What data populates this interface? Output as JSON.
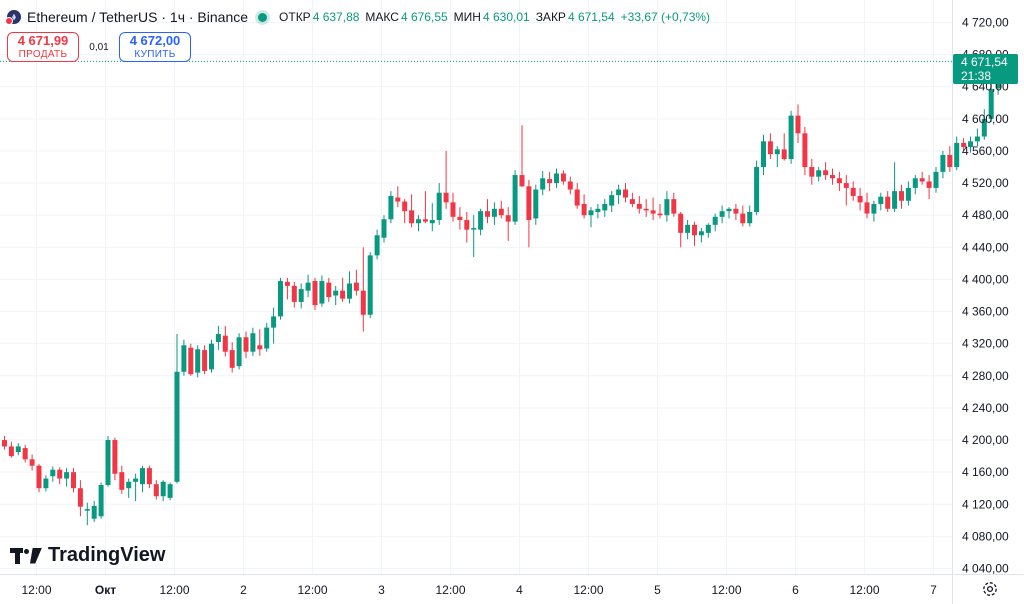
{
  "header": {
    "title": "Ethereum / TetherUS · 1ч · Binance",
    "ohlc": [
      {
        "label": "ОТКР",
        "value": "4 637,88"
      },
      {
        "label": "МАКС",
        "value": "4 676,55"
      },
      {
        "label": "МИН",
        "value": "4 630,01"
      },
      {
        "label": "ЗАКР",
        "value": "4 671,54"
      }
    ],
    "change": "+33,67 (+0,73%)"
  },
  "trade": {
    "sell_price": "4 671,99",
    "sell_label": "ПРОДАТЬ",
    "spread": "0,01",
    "buy_price": "4 672,00",
    "buy_label": "КУПИТЬ"
  },
  "price_tag": {
    "price": "4 671,54",
    "countdown": "21:38"
  },
  "logo": "TradingView",
  "colors": {
    "up": "#089981",
    "down": "#f23645",
    "grid": "#f0f3fa",
    "text": "#131722"
  },
  "chart_data": {
    "type": "candlestick",
    "title": "Ethereum / TetherUS · 1ч · Binance",
    "y_ticks": [
      "4 720,00",
      "4 680,00",
      "4 640,00",
      "4 600,00",
      "4 560,00",
      "4 520,00",
      "4 480,00",
      "4 440,00",
      "4 400,00",
      "4 360,00",
      "4 320,00",
      "4 280,00",
      "4 240,00",
      "4 200,00",
      "4 160,00",
      "4 120,00",
      "4 080,00",
      "4 040,00"
    ],
    "y_tick_values": [
      4720,
      4680,
      4640,
      4600,
      4560,
      4520,
      4480,
      4440,
      4400,
      4360,
      4320,
      4280,
      4240,
      4200,
      4160,
      4120,
      4080,
      4040
    ],
    "ylim": [
      4032,
      4740
    ],
    "x_ticks": [
      {
        "label": "12:00",
        "bar": 5,
        "bold": false
      },
      {
        "label": "Окт",
        "bar": 15,
        "bold": true
      },
      {
        "label": "12:00",
        "bar": 25,
        "bold": false
      },
      {
        "label": "2",
        "bar": 35,
        "bold": false
      },
      {
        "label": "12:00",
        "bar": 45,
        "bold": false
      },
      {
        "label": "3",
        "bar": 55,
        "bold": false
      },
      {
        "label": "12:00",
        "bar": 65,
        "bold": false
      },
      {
        "label": "4",
        "bar": 75,
        "bold": false
      },
      {
        "label": "12:00",
        "bar": 85,
        "bold": false
      },
      {
        "label": "5",
        "bar": 95,
        "bold": false
      },
      {
        "label": "12:00",
        "bar": 105,
        "bold": false
      },
      {
        "label": "6",
        "bar": 115,
        "bold": false
      },
      {
        "label": "12:00",
        "bar": 125,
        "bold": false
      },
      {
        "label": "7",
        "bar": 135,
        "bold": false
      }
    ],
    "last_price": 4671.54,
    "candles": [
      [
        4200,
        4205,
        4188,
        4192
      ],
      [
        4192,
        4198,
        4178,
        4180
      ],
      [
        4185,
        4196,
        4181,
        4192
      ],
      [
        4190,
        4194,
        4172,
        4176
      ],
      [
        4176,
        4182,
        4162,
        4168
      ],
      [
        4168,
        4170,
        4135,
        4140
      ],
      [
        4140,
        4156,
        4136,
        4152
      ],
      [
        4155,
        4167,
        4148,
        4163
      ],
      [
        4163,
        4166,
        4145,
        4152
      ],
      [
        4152,
        4165,
        4142,
        4160
      ],
      [
        4160,
        4165,
        4135,
        4140
      ],
      [
        4140,
        4150,
        4105,
        4117
      ],
      [
        4112,
        4122,
        4094,
        4114
      ],
      [
        4102,
        4124,
        4098,
        4118
      ],
      [
        4105,
        4147,
        4102,
        4144
      ],
      [
        4144,
        4205,
        4142,
        4200
      ],
      [
        4200,
        4203,
        4150,
        4158
      ],
      [
        4160,
        4168,
        4133,
        4138
      ],
      [
        4140,
        4152,
        4128,
        4148
      ],
      [
        4148,
        4158,
        4124,
        4152
      ],
      [
        4145,
        4168,
        4135,
        4165
      ],
      [
        4165,
        4168,
        4140,
        4145
      ],
      [
        4145,
        4150,
        4126,
        4130
      ],
      [
        4130,
        4150,
        4124,
        4148
      ],
      [
        4128,
        4147,
        4125,
        4145
      ],
      [
        4148,
        4332,
        4146,
        4285
      ],
      [
        4285,
        4325,
        4280,
        4318
      ],
      [
        4315,
        4320,
        4280,
        4282
      ],
      [
        4284,
        4318,
        4278,
        4313
      ],
      [
        4312,
        4318,
        4282,
        4286
      ],
      [
        4288,
        4325,
        4284,
        4320
      ],
      [
        4322,
        4342,
        4312,
        4332
      ],
      [
        4330,
        4342,
        4304,
        4310
      ],
      [
        4312,
        4322,
        4284,
        4290
      ],
      [
        4292,
        4333,
        4288,
        4328
      ],
      [
        4328,
        4335,
        4302,
        4310
      ],
      [
        4310,
        4340,
        4305,
        4333
      ],
      [
        4318,
        4338,
        4305,
        4313
      ],
      [
        4314,
        4346,
        4310,
        4340
      ],
      [
        4340,
        4365,
        4320,
        4354
      ],
      [
        4354,
        4402,
        4350,
        4398
      ],
      [
        4397,
        4402,
        4375,
        4392
      ],
      [
        4392,
        4397,
        4365,
        4372
      ],
      [
        4372,
        4395,
        4364,
        4388
      ],
      [
        4386,
        4406,
        4378,
        4396
      ],
      [
        4398,
        4402,
        4362,
        4368
      ],
      [
        4370,
        4405,
        4366,
        4398
      ],
      [
        4396,
        4402,
        4372,
        4378
      ],
      [
        4380,
        4392,
        4368,
        4386
      ],
      [
        4386,
        4402,
        4372,
        4376
      ],
      [
        4376,
        4410,
        4370,
        4395
      ],
      [
        4396,
        4412,
        4380,
        4386
      ],
      [
        4386,
        4440,
        4335,
        4356
      ],
      [
        4356,
        4434,
        4352,
        4430
      ],
      [
        4430,
        4462,
        4425,
        4455
      ],
      [
        4452,
        4480,
        4446,
        4475
      ],
      [
        4475,
        4510,
        4470,
        4504
      ],
      [
        4502,
        4516,
        4490,
        4497
      ],
      [
        4497,
        4500,
        4470,
        4485
      ],
      [
        4486,
        4506,
        4465,
        4470
      ],
      [
        4470,
        4480,
        4460,
        4475
      ],
      [
        4475,
        4510,
        4470,
        4472
      ],
      [
        4470,
        4495,
        4460,
        4474
      ],
      [
        4474,
        4520,
        4468,
        4508
      ],
      [
        4508,
        4560,
        4488,
        4496
      ],
      [
        4496,
        4508,
        4472,
        4478
      ],
      [
        4478,
        4490,
        4462,
        4474
      ],
      [
        4474,
        4484,
        4446,
        4462
      ],
      [
        4462,
        4480,
        4428,
        4464
      ],
      [
        4462,
        4488,
        4455,
        4485
      ],
      [
        4485,
        4500,
        4470,
        4478
      ],
      [
        4478,
        4496,
        4468,
        4488
      ],
      [
        4488,
        4498,
        4476,
        4480
      ],
      [
        4480,
        4490,
        4448,
        4472
      ],
      [
        4472,
        4536,
        4468,
        4530
      ],
      [
        4530,
        4592,
        4515,
        4516
      ],
      [
        4516,
        4524,
        4440,
        4474
      ],
      [
        4476,
        4518,
        4468,
        4512
      ],
      [
        4512,
        4535,
        4505,
        4526
      ],
      [
        4525,
        4534,
        4510,
        4520
      ],
      [
        4520,
        4538,
        4514,
        4532
      ],
      [
        4532,
        4536,
        4518,
        4522
      ],
      [
        4522,
        4528,
        4506,
        4512
      ],
      [
        4512,
        4520,
        4488,
        4492
      ],
      [
        4494,
        4506,
        4476,
        4480
      ],
      [
        4480,
        4490,
        4465,
        4486
      ],
      [
        4484,
        4494,
        4476,
        4488
      ],
      [
        4486,
        4500,
        4478,
        4494
      ],
      [
        4492,
        4510,
        4484,
        4505
      ],
      [
        4505,
        4518,
        4494,
        4512
      ],
      [
        4512,
        4520,
        4496,
        4502
      ],
      [
        4500,
        4508,
        4490,
        4494
      ],
      [
        4494,
        4504,
        4482,
        4488
      ],
      [
        4488,
        4500,
        4478,
        4486
      ],
      [
        4486,
        4502,
        4474,
        4482
      ],
      [
        4482,
        4494,
        4476,
        4480
      ],
      [
        4480,
        4510,
        4472,
        4500
      ],
      [
        4500,
        4508,
        4478,
        4482
      ],
      [
        4482,
        4484,
        4440,
        4458
      ],
      [
        4458,
        4474,
        4450,
        4468
      ],
      [
        4468,
        4472,
        4442,
        4455
      ],
      [
        4455,
        4464,
        4446,
        4460
      ],
      [
        4458,
        4470,
        4452,
        4468
      ],
      [
        4468,
        4482,
        4460,
        4478
      ],
      [
        4478,
        4492,
        4470,
        4485
      ],
      [
        4485,
        4490,
        4476,
        4488
      ],
      [
        4488,
        4494,
        4474,
        4482
      ],
      [
        4482,
        4492,
        4466,
        4470
      ],
      [
        4470,
        4492,
        4466,
        4484
      ],
      [
        4484,
        4548,
        4480,
        4540
      ],
      [
        4540,
        4580,
        4530,
        4572
      ],
      [
        4572,
        4582,
        4550,
        4556
      ],
      [
        4556,
        4566,
        4540,
        4562
      ],
      [
        4562,
        4582,
        4548,
        4550
      ],
      [
        4550,
        4610,
        4544,
        4604
      ],
      [
        4604,
        4618,
        4570,
        4582
      ],
      [
        4582,
        4590,
        4530,
        4540
      ],
      [
        4540,
        4550,
        4518,
        4528
      ],
      [
        4528,
        4540,
        4522,
        4536
      ],
      [
        4536,
        4546,
        4524,
        4530
      ],
      [
        4530,
        4538,
        4518,
        4526
      ],
      [
        4526,
        4534,
        4510,
        4520
      ],
      [
        4520,
        4530,
        4492,
        4514
      ],
      [
        4514,
        4522,
        4498,
        4504
      ],
      [
        4504,
        4514,
        4486,
        4496
      ],
      [
        4496,
        4508,
        4476,
        4482
      ],
      [
        4482,
        4498,
        4472,
        4494
      ],
      [
        4494,
        4508,
        4486,
        4503
      ],
      [
        4503,
        4510,
        4484,
        4488
      ],
      [
        4488,
        4546,
        4484,
        4510
      ],
      [
        4510,
        4518,
        4488,
        4498
      ],
      [
        4498,
        4522,
        4492,
        4514
      ],
      [
        4514,
        4530,
        4506,
        4526
      ],
      [
        4526,
        4534,
        4518,
        4522
      ],
      [
        4522,
        4530,
        4500,
        4514
      ],
      [
        4514,
        4540,
        4508,
        4534
      ],
      [
        4534,
        4560,
        4526,
        4555
      ],
      [
        4555,
        4566,
        4534,
        4540
      ],
      [
        4540,
        4578,
        4536,
        4570
      ],
      [
        4570,
        4576,
        4560,
        4565
      ],
      [
        4565,
        4578,
        4558,
        4572
      ],
      [
        4572,
        4588,
        4566,
        4578
      ],
      [
        4578,
        4612,
        4574,
        4600
      ],
      [
        4600,
        4648,
        4596,
        4637
      ],
      [
        4637.88,
        4676.55,
        4630.01,
        4671.54
      ]
    ]
  }
}
